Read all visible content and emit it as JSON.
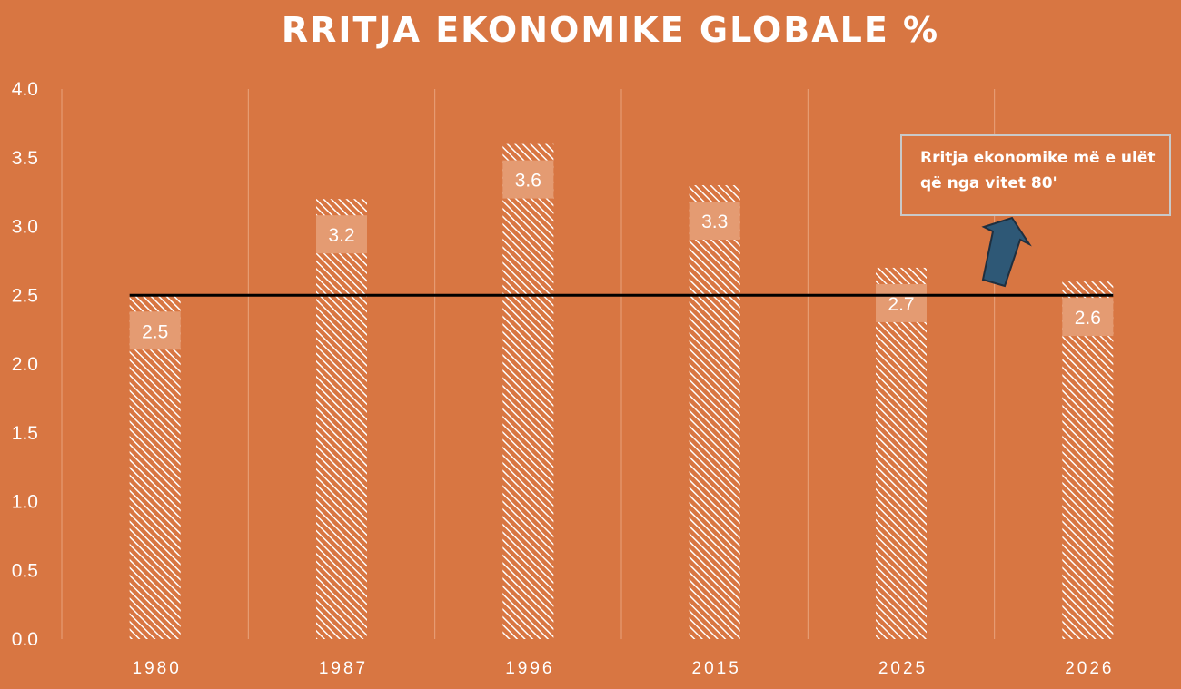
{
  "chart_data": {
    "type": "bar",
    "title": "RRITJA EKONOMIKE GLOBALE %",
    "xlabel": "",
    "ylabel": "",
    "categories": [
      "1980",
      "1987",
      "1996",
      "2015",
      "2025",
      "2026"
    ],
    "values": [
      2.5,
      3.2,
      3.6,
      3.3,
      2.7,
      2.6
    ],
    "value_labels": [
      "2.5",
      "3.2",
      "3.6",
      "3.3",
      "2.7",
      "2.6"
    ],
    "ylim": [
      0,
      4.0
    ],
    "yticks": [
      "0.0",
      "0.5",
      "1.0",
      "1.5",
      "2.0",
      "2.5",
      "3.0",
      "3.5",
      "4.0"
    ],
    "grid": "vertical",
    "legend": "none",
    "reference_line": 2.5,
    "annotation": "Rritja ekonomike më e ulët që nga vitet 80'",
    "colors": {
      "background": "#D87642",
      "bar_hatch": "#ffffff",
      "reference_line": "#000000",
      "arrow_fill": "#2E5876",
      "arrow_stroke": "#1f2f3f"
    }
  }
}
